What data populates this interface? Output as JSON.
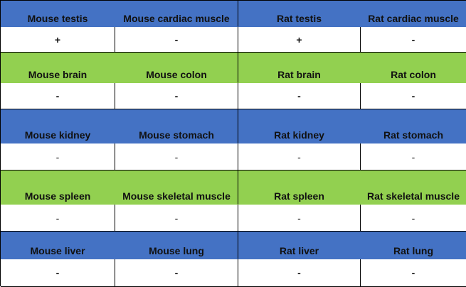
{
  "table": {
    "rows": [
      {
        "color": "blue",
        "headers": [
          "Mouse testis",
          "Mouse cardiac muscle",
          "Rat testis",
          "Rat cardiac muscle"
        ],
        "values": [
          "+",
          "-",
          "+",
          "-"
        ],
        "weight": "bold"
      },
      {
        "color": "green",
        "headers": [
          "Mouse brain",
          "Mouse colon",
          "Rat brain",
          "Rat colon"
        ],
        "values": [
          "-",
          "-",
          "-",
          "-"
        ],
        "weight": "bold"
      },
      {
        "color": "blue",
        "headers": [
          "Mouse kidney",
          "Mouse stomach",
          "Rat kidney",
          "Rat stomach"
        ],
        "values": [
          "-",
          "-",
          "-",
          "-"
        ],
        "weight": "light"
      },
      {
        "color": "green",
        "headers": [
          "Mouse spleen",
          "Mouse skeletal muscle",
          "Rat spleen",
          "Rat skeletal muscle"
        ],
        "values": [
          "-",
          "-",
          "-",
          "-"
        ],
        "weight": "light"
      },
      {
        "color": "blue",
        "headers": [
          "Mouse liver",
          "Mouse lung",
          "Rat liver",
          "Rat lung"
        ],
        "values": [
          "-",
          "-",
          "-",
          "-"
        ],
        "weight": "bold"
      }
    ],
    "colors": {
      "blue": "#4472c4",
      "green": "#92d050"
    }
  }
}
